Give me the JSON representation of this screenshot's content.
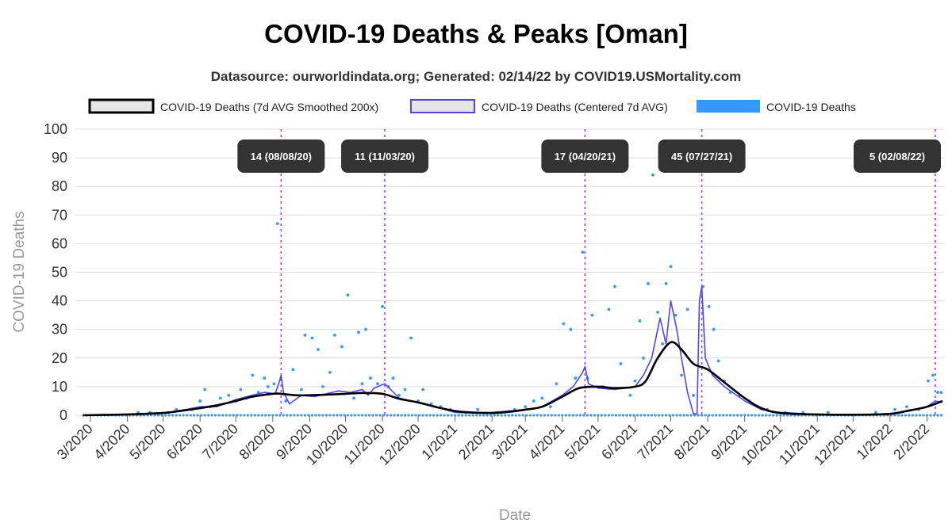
{
  "chart_data": {
    "type": "line",
    "title": "COVID-19 Deaths & Peaks [Oman]",
    "subtitle": "Datasource: ourworldindata.org; Generated: 02/14/22 by COVID19.USMortality.com",
    "xlabel": "Date",
    "ylabel": "COVID-19 Deaths",
    "ylim": [
      0,
      100
    ],
    "yticks": [
      0,
      10,
      20,
      30,
      40,
      50,
      60,
      70,
      80,
      90,
      100
    ],
    "xticks": [
      {
        "label": "3/2020",
        "date": "2020-03-01"
      },
      {
        "label": "4/2020",
        "date": "2020-04-01"
      },
      {
        "label": "5/2020",
        "date": "2020-05-01"
      },
      {
        "label": "6/2020",
        "date": "2020-06-01"
      },
      {
        "label": "7/2020",
        "date": "2020-07-01"
      },
      {
        "label": "8/2020",
        "date": "2020-08-01"
      },
      {
        "label": "9/2020",
        "date": "2020-09-01"
      },
      {
        "label": "10/2020",
        "date": "2020-10-01"
      },
      {
        "label": "11/2020",
        "date": "2020-11-01"
      },
      {
        "label": "12/2020",
        "date": "2020-12-01"
      },
      {
        "label": "1/2021",
        "date": "2021-01-01"
      },
      {
        "label": "2/2021",
        "date": "2021-02-01"
      },
      {
        "label": "3/2021",
        "date": "2021-03-01"
      },
      {
        "label": "4/2021",
        "date": "2021-04-01"
      },
      {
        "label": "5/2021",
        "date": "2021-05-01"
      },
      {
        "label": "6/2021",
        "date": "2021-06-01"
      },
      {
        "label": "7/2021",
        "date": "2021-07-01"
      },
      {
        "label": "8/2021",
        "date": "2021-08-01"
      },
      {
        "label": "9/2021",
        "date": "2021-09-01"
      },
      {
        "label": "10/2021",
        "date": "2021-10-01"
      },
      {
        "label": "11/2021",
        "date": "2021-11-01"
      },
      {
        "label": "12/2021",
        "date": "2021-12-01"
      },
      {
        "label": "1/2022",
        "date": "2022-01-01"
      },
      {
        "label": "2/2022",
        "date": "2022-02-01"
      }
    ],
    "xrange": [
      "2020-02-24",
      "2022-02-14"
    ],
    "grid": true,
    "legend_position": "top",
    "colors": {
      "smoothed": "#000000",
      "centered": "#5046e5",
      "daily": "#3399ff",
      "peak_line": "#a23ff5",
      "annotation_bg": "#333333"
    },
    "series": [
      {
        "name": "COVID-19 Deaths (7d AVG Smoothed 200x)",
        "style": "line",
        "points": [
          [
            "2020-02-24",
            0
          ],
          [
            "2020-04-01",
            0.3
          ],
          [
            "2020-05-01",
            0.8
          ],
          [
            "2020-05-15",
            1.5
          ],
          [
            "2020-06-01",
            2.5
          ],
          [
            "2020-06-15",
            3.5
          ],
          [
            "2020-07-01",
            5.0
          ],
          [
            "2020-07-15",
            6.5
          ],
          [
            "2020-08-01",
            7.5
          ],
          [
            "2020-08-08",
            7.5
          ],
          [
            "2020-08-20",
            7.0
          ],
          [
            "2020-09-01",
            7.0
          ],
          [
            "2020-09-15",
            7.2
          ],
          [
            "2020-10-01",
            7.5
          ],
          [
            "2020-10-15",
            7.8
          ],
          [
            "2020-11-01",
            7.5
          ],
          [
            "2020-11-15",
            5.8
          ],
          [
            "2020-12-01",
            4.5
          ],
          [
            "2020-12-15",
            3.0
          ],
          [
            "2021-01-01",
            1.5
          ],
          [
            "2021-01-15",
            1.0
          ],
          [
            "2021-02-01",
            0.8
          ],
          [
            "2021-02-15",
            1.2
          ],
          [
            "2021-03-01",
            2.0
          ],
          [
            "2021-03-15",
            3.0
          ],
          [
            "2021-04-01",
            6.5
          ],
          [
            "2021-04-15",
            9.5
          ],
          [
            "2021-05-01",
            10.0
          ],
          [
            "2021-05-15",
            9.5
          ],
          [
            "2021-06-01",
            10.0
          ],
          [
            "2021-06-10",
            12.0
          ],
          [
            "2021-06-20",
            20.0
          ],
          [
            "2021-07-01",
            25.5
          ],
          [
            "2021-07-10",
            23.0
          ],
          [
            "2021-07-20",
            18.0
          ],
          [
            "2021-08-01",
            16.0
          ],
          [
            "2021-08-15",
            11.5
          ],
          [
            "2021-09-01",
            6.0
          ],
          [
            "2021-09-15",
            2.5
          ],
          [
            "2021-10-01",
            0.8
          ],
          [
            "2021-11-01",
            0.3
          ],
          [
            "2021-12-01",
            0.2
          ],
          [
            "2022-01-01",
            0.5
          ],
          [
            "2022-01-15",
            1.5
          ],
          [
            "2022-02-01",
            3.0
          ],
          [
            "2022-02-14",
            5.0
          ]
        ]
      },
      {
        "name": "COVID-19 Deaths (Centered 7d AVG)",
        "style": "line",
        "points": [
          [
            "2020-02-24",
            0
          ],
          [
            "2020-04-01",
            0.3
          ],
          [
            "2020-05-01",
            0.8
          ],
          [
            "2020-05-20",
            2.0
          ],
          [
            "2020-06-01",
            3.0
          ],
          [
            "2020-06-15",
            3.0
          ],
          [
            "2020-07-01",
            5.5
          ],
          [
            "2020-07-15",
            7.0
          ],
          [
            "2020-07-25",
            8.0
          ],
          [
            "2020-08-03",
            7.5
          ],
          [
            "2020-08-06",
            11.0
          ],
          [
            "2020-08-08",
            14.0
          ],
          [
            "2020-08-10",
            8.0
          ],
          [
            "2020-08-15",
            4.0
          ],
          [
            "2020-08-25",
            7.0
          ],
          [
            "2020-09-05",
            6.5
          ],
          [
            "2020-09-15",
            7.5
          ],
          [
            "2020-09-25",
            8.5
          ],
          [
            "2020-10-05",
            8.0
          ],
          [
            "2020-10-15",
            9.0
          ],
          [
            "2020-10-20",
            7.0
          ],
          [
            "2020-10-25",
            9.5
          ],
          [
            "2020-11-03",
            11.0
          ],
          [
            "2020-11-08",
            9.0
          ],
          [
            "2020-11-15",
            6.0
          ],
          [
            "2020-11-25",
            5.0
          ],
          [
            "2020-12-05",
            4.0
          ],
          [
            "2020-12-15",
            3.0
          ],
          [
            "2021-01-01",
            1.0
          ],
          [
            "2021-01-15",
            0.8
          ],
          [
            "2021-02-01",
            1.0
          ],
          [
            "2021-02-15",
            1.5
          ],
          [
            "2021-03-01",
            2.0
          ],
          [
            "2021-03-15",
            3.0
          ],
          [
            "2021-04-01",
            7.0
          ],
          [
            "2021-04-10",
            10.0
          ],
          [
            "2021-04-18",
            15.0
          ],
          [
            "2021-04-20",
            17.0
          ],
          [
            "2021-04-23",
            11.0
          ],
          [
            "2021-05-01",
            9.5
          ],
          [
            "2021-05-15",
            9.0
          ],
          [
            "2021-06-01",
            10.0
          ],
          [
            "2021-06-08",
            14.0
          ],
          [
            "2021-06-15",
            20.0
          ],
          [
            "2021-06-22",
            34.0
          ],
          [
            "2021-06-27",
            25.0
          ],
          [
            "2021-07-01",
            40.0
          ],
          [
            "2021-07-06",
            30.0
          ],
          [
            "2021-07-10",
            20.0
          ],
          [
            "2021-07-15",
            8.0
          ],
          [
            "2021-07-20",
            0.5
          ],
          [
            "2021-07-23",
            0.5
          ],
          [
            "2021-07-25",
            40.0
          ],
          [
            "2021-07-27",
            45.0
          ],
          [
            "2021-07-30",
            20.0
          ],
          [
            "2021-08-05",
            14.0
          ],
          [
            "2021-08-15",
            10.0
          ],
          [
            "2021-09-01",
            5.0
          ],
          [
            "2021-09-15",
            2.0
          ],
          [
            "2021-10-01",
            1.0
          ],
          [
            "2021-11-01",
            0.3
          ],
          [
            "2021-12-01",
            0.2
          ],
          [
            "2022-01-01",
            0.5
          ],
          [
            "2022-01-20",
            2.0
          ],
          [
            "2022-02-01",
            3.0
          ],
          [
            "2022-02-08",
            5.0
          ],
          [
            "2022-02-14",
            4.5
          ]
        ]
      },
      {
        "name": "COVID-19 Deaths",
        "style": "scatter",
        "points": [
          [
            "2020-04-10",
            1
          ],
          [
            "2020-04-20",
            1
          ],
          [
            "2020-05-05",
            1
          ],
          [
            "2020-05-12",
            2
          ],
          [
            "2020-05-25",
            2
          ],
          [
            "2020-06-01",
            5
          ],
          [
            "2020-06-05",
            9
          ],
          [
            "2020-06-10",
            3
          ],
          [
            "2020-06-18",
            6
          ],
          [
            "2020-06-25",
            7
          ],
          [
            "2020-07-01",
            5
          ],
          [
            "2020-07-05",
            9
          ],
          [
            "2020-07-10",
            6
          ],
          [
            "2020-07-15",
            14
          ],
          [
            "2020-07-20",
            8
          ],
          [
            "2020-07-25",
            13
          ],
          [
            "2020-07-28",
            10
          ],
          [
            "2020-08-02",
            11
          ],
          [
            "2020-08-05",
            67
          ],
          [
            "2020-08-12",
            5
          ],
          [
            "2020-08-18",
            16
          ],
          [
            "2020-08-25",
            9
          ],
          [
            "2020-08-28",
            28
          ],
          [
            "2020-09-03",
            27
          ],
          [
            "2020-09-08",
            23
          ],
          [
            "2020-09-12",
            10
          ],
          [
            "2020-09-18",
            15
          ],
          [
            "2020-09-22",
            28
          ],
          [
            "2020-09-28",
            24
          ],
          [
            "2020-10-03",
            42
          ],
          [
            "2020-10-08",
            6
          ],
          [
            "2020-10-12",
            29
          ],
          [
            "2020-10-15",
            11
          ],
          [
            "2020-10-18",
            30
          ],
          [
            "2020-10-22",
            13
          ],
          [
            "2020-10-28",
            11
          ],
          [
            "2020-11-01",
            38
          ],
          [
            "2020-11-06",
            10
          ],
          [
            "2020-11-10",
            13
          ],
          [
            "2020-11-15",
            7
          ],
          [
            "2020-11-20",
            9
          ],
          [
            "2020-11-25",
            27
          ],
          [
            "2020-12-01",
            5
          ],
          [
            "2020-12-05",
            9
          ],
          [
            "2020-12-12",
            4
          ],
          [
            "2020-12-20",
            3
          ],
          [
            "2020-12-28",
            2
          ],
          [
            "2021-01-10",
            1
          ],
          [
            "2021-01-20",
            2
          ],
          [
            "2021-02-05",
            1
          ],
          [
            "2021-02-20",
            2
          ],
          [
            "2021-03-01",
            3
          ],
          [
            "2021-03-08",
            5
          ],
          [
            "2021-03-15",
            6
          ],
          [
            "2021-03-22",
            3
          ],
          [
            "2021-03-27",
            11
          ],
          [
            "2021-04-02",
            32
          ],
          [
            "2021-04-08",
            30
          ],
          [
            "2021-04-12",
            13
          ],
          [
            "2021-04-18",
            57
          ],
          [
            "2021-04-22",
            13
          ],
          [
            "2021-04-26",
            35
          ],
          [
            "2021-05-05",
            10
          ],
          [
            "2021-05-10",
            37
          ],
          [
            "2021-05-15",
            45
          ],
          [
            "2021-05-20",
            18
          ],
          [
            "2021-05-28",
            7
          ],
          [
            "2021-06-01",
            12
          ],
          [
            "2021-06-05",
            33
          ],
          [
            "2021-06-08",
            20
          ],
          [
            "2021-06-12",
            46
          ],
          [
            "2021-06-16",
            84
          ],
          [
            "2021-06-20",
            36
          ],
          [
            "2021-06-24",
            25
          ],
          [
            "2021-06-27",
            46
          ],
          [
            "2021-07-01",
            52
          ],
          [
            "2021-07-05",
            35
          ],
          [
            "2021-07-10",
            14
          ],
          [
            "2021-07-15",
            37
          ],
          [
            "2021-07-20",
            7
          ],
          [
            "2021-07-28",
            45
          ],
          [
            "2021-08-02",
            38
          ],
          [
            "2021-08-06",
            30
          ],
          [
            "2021-08-10",
            19
          ],
          [
            "2021-08-15",
            12
          ],
          [
            "2021-08-20",
            8
          ],
          [
            "2021-08-28",
            7
          ],
          [
            "2021-09-05",
            5
          ],
          [
            "2021-09-12",
            3
          ],
          [
            "2021-09-20",
            2
          ],
          [
            "2021-10-05",
            1
          ],
          [
            "2021-10-20",
            1
          ],
          [
            "2021-11-10",
            1
          ],
          [
            "2021-12-20",
            1
          ],
          [
            "2022-01-05",
            2
          ],
          [
            "2022-01-15",
            3
          ],
          [
            "2022-01-25",
            2
          ],
          [
            "2022-02-02",
            12
          ],
          [
            "2022-02-06",
            14
          ],
          [
            "2022-02-10",
            8
          ],
          [
            "2022-02-13",
            8
          ]
        ]
      }
    ],
    "annotations": [
      {
        "label": "14 (08/08/20)",
        "date": "2020-08-08",
        "value": 14
      },
      {
        "label": "11 (11/03/20)",
        "date": "2020-11-03",
        "value": 11
      },
      {
        "label": "17 (04/20/21)",
        "date": "2021-04-20",
        "value": 17
      },
      {
        "label": "45 (07/27/21)",
        "date": "2021-07-27",
        "value": 45
      },
      {
        "label": "5 (02/08/22)",
        "date": "2022-02-08",
        "value": 5
      }
    ]
  }
}
